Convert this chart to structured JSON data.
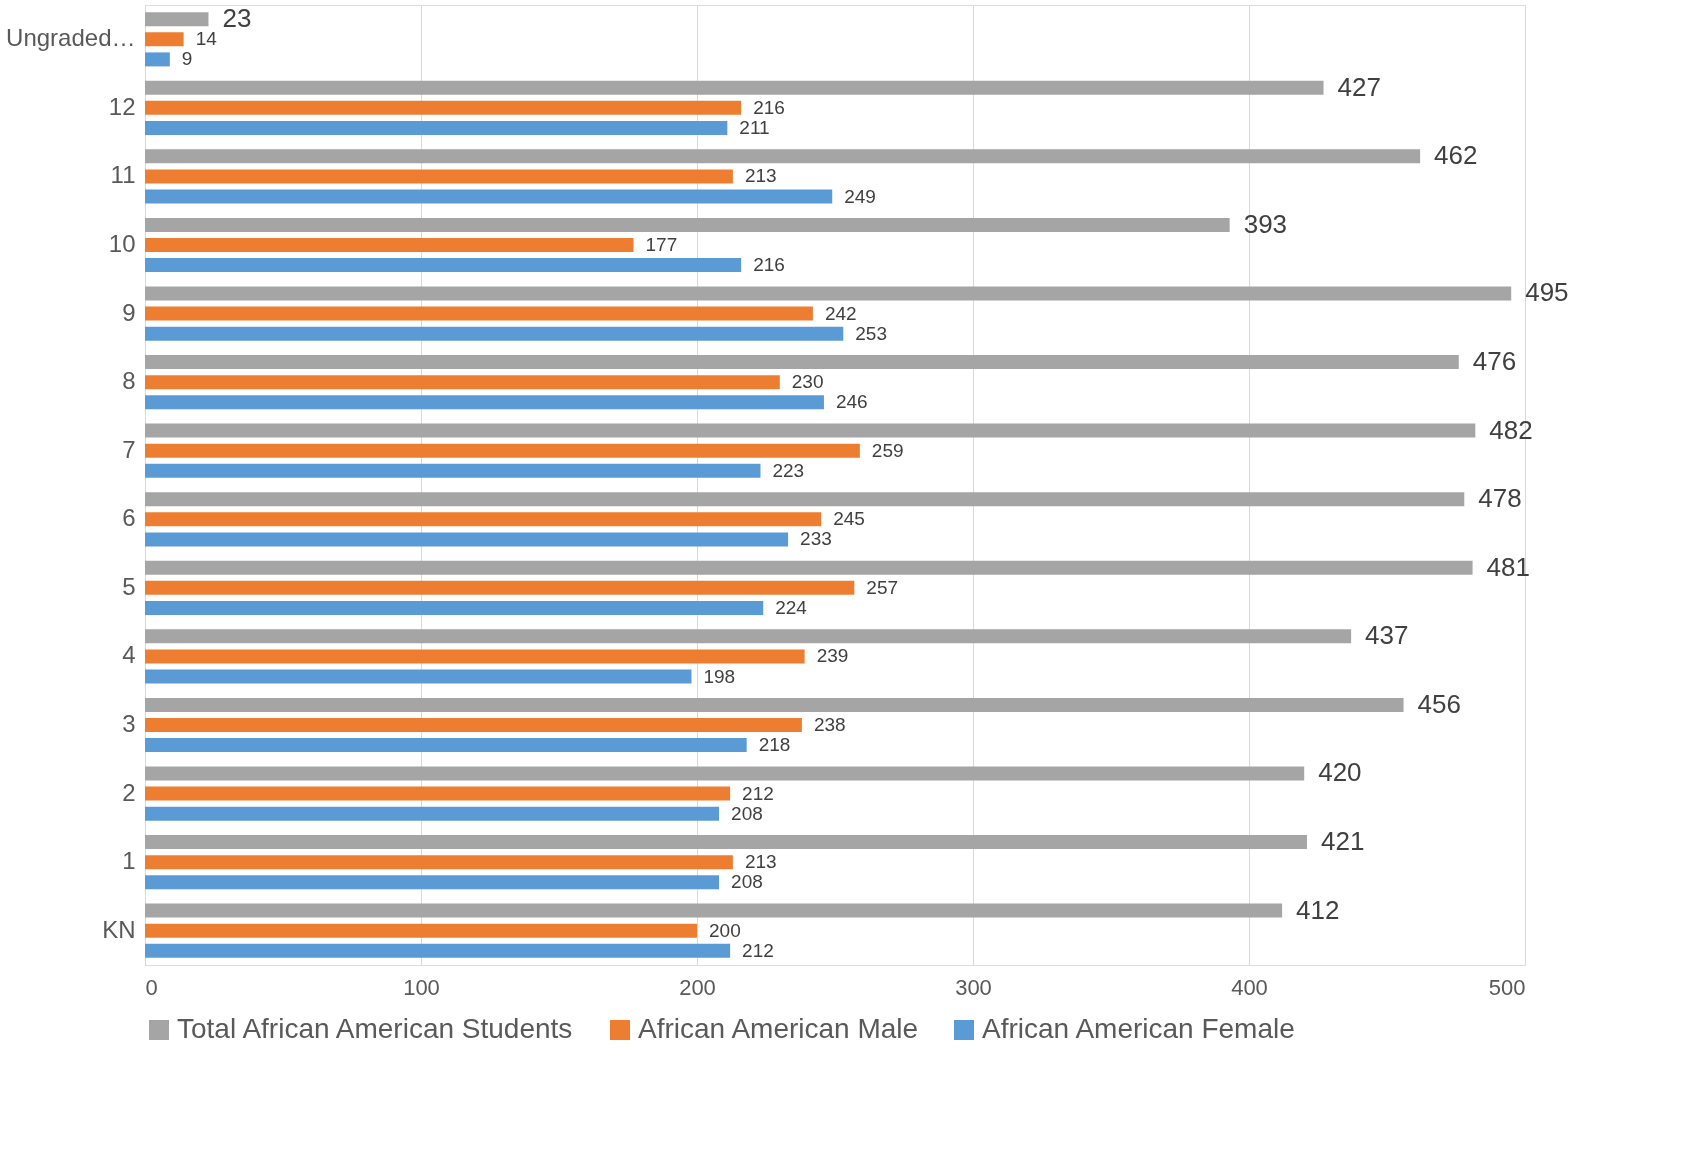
{
  "chart_data": {
    "type": "bar",
    "orientation": "horizontal",
    "categories": [
      "Ungraded…",
      "12",
      "11",
      "10",
      "9",
      "8",
      "7",
      "6",
      "5",
      "4",
      "3",
      "2",
      "1",
      "KN"
    ],
    "series": [
      {
        "name": "Total African American Students",
        "color": "#a5a5a5",
        "values": [
          23,
          427,
          462,
          393,
          495,
          476,
          482,
          478,
          481,
          437,
          456,
          420,
          421,
          412
        ]
      },
      {
        "name": "African American Male",
        "color": "#ed7d31",
        "values": [
          14,
          216,
          213,
          177,
          242,
          230,
          259,
          245,
          257,
          239,
          238,
          212,
          213,
          200
        ]
      },
      {
        "name": "African American Female",
        "color": "#5b9bd5",
        "values": [
          9,
          211,
          249,
          216,
          253,
          246,
          223,
          233,
          224,
          198,
          218,
          208,
          208,
          212
        ]
      }
    ],
    "xlim": [
      0,
      500
    ],
    "xticks": [
      0,
      100,
      200,
      300,
      400,
      500
    ],
    "grid": "x",
    "legend": "bottom",
    "data_labels": true
  }
}
